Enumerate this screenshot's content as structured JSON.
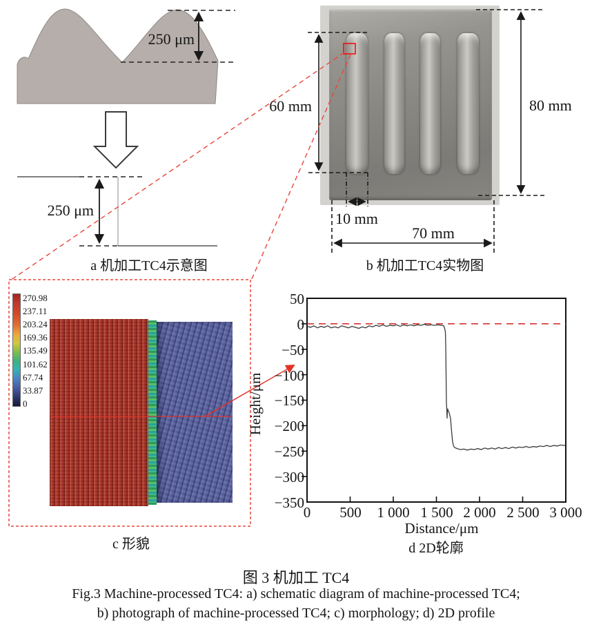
{
  "figure": {
    "caption_cn": "图 3  机加工 TC4",
    "caption_en_line1": "Fig.3 Machine-processed TC4: a) schematic diagram of machine-processed TC4;",
    "caption_en_line2": "b) photograph of machine-processed TC4; c) morphology; d) 2D profile"
  },
  "panel_a": {
    "caption": "a  机加工TC4示意图",
    "peak_height_label": "250 μm",
    "step_depth_label": "250 μm"
  },
  "panel_b": {
    "caption": "b  机加工TC4实物图",
    "groove_length_label": "60 mm",
    "plate_height_label": "80 mm",
    "groove_width_label": "10 mm",
    "plate_width_label": "70 mm"
  },
  "panel_c": {
    "caption": "c  形貌",
    "colorbar_labels": [
      "270.98",
      "237.11",
      "203.24",
      "169.36",
      "135.49",
      "101.62",
      "67.74",
      "33.87",
      "0"
    ]
  },
  "panel_d": {
    "caption": "d  2D轮廓",
    "xlabel": "Distance/μm",
    "ylabel": "Height/μm",
    "yticks": [
      "50",
      "0",
      "−50",
      "−100",
      "−150",
      "−200",
      "−250",
      "−300",
      "−350"
    ],
    "xticks": [
      "0",
      "500",
      "1 000",
      "1 500",
      "2 000",
      "2 500",
      "3 000"
    ]
  },
  "colors": {
    "annotation_red": "#e03a2c",
    "zero_line_red": "#cf2020",
    "profile_line": "#3a3a3a",
    "schematic_fill": "#b6aeab"
  },
  "chart_data": {
    "type": "line",
    "title": "",
    "xlabel": "Distance/μm",
    "ylabel": "Height/μm",
    "xlim": [
      0,
      3000
    ],
    "ylim": [
      -350,
      50
    ],
    "x_tick_step": 500,
    "y_tick_step": 50,
    "grid": false,
    "legend": "none",
    "series": [
      {
        "name": "machined surface 2D profile",
        "color": "#3a3a3a",
        "style": "solid",
        "points": [
          [
            0,
            -5
          ],
          [
            40,
            -7
          ],
          [
            80,
            -4
          ],
          [
            120,
            -8
          ],
          [
            160,
            -5
          ],
          [
            200,
            -7
          ],
          [
            240,
            -4
          ],
          [
            280,
            -8
          ],
          [
            320,
            -6
          ],
          [
            360,
            -8
          ],
          [
            400,
            -4
          ],
          [
            440,
            -6
          ],
          [
            480,
            -8
          ],
          [
            520,
            -5
          ],
          [
            560,
            -7
          ],
          [
            600,
            -9
          ],
          [
            640,
            -6
          ],
          [
            680,
            -8
          ],
          [
            720,
            -4
          ],
          [
            760,
            -6
          ],
          [
            800,
            -3
          ],
          [
            840,
            -5
          ],
          [
            880,
            -2
          ],
          [
            920,
            -5
          ],
          [
            960,
            -3
          ],
          [
            1000,
            -4
          ],
          [
            1040,
            -2
          ],
          [
            1080,
            -5
          ],
          [
            1120,
            -2
          ],
          [
            1160,
            -4
          ],
          [
            1200,
            -2
          ],
          [
            1240,
            -4
          ],
          [
            1280,
            -2
          ],
          [
            1320,
            -3
          ],
          [
            1360,
            -1
          ],
          [
            1400,
            -3
          ],
          [
            1440,
            -2
          ],
          [
            1480,
            -3
          ],
          [
            1520,
            -2
          ],
          [
            1560,
            -3
          ],
          [
            1585,
            -4
          ],
          [
            1600,
            -12
          ],
          [
            1605,
            -18
          ],
          [
            1609,
            -50
          ],
          [
            1613,
            -110
          ],
          [
            1616,
            -155
          ],
          [
            1620,
            -168
          ],
          [
            1624,
            -186
          ],
          [
            1627,
            -172
          ],
          [
            1632,
            -168
          ],
          [
            1640,
            -172
          ],
          [
            1648,
            -175
          ],
          [
            1656,
            -180
          ],
          [
            1664,
            -186
          ],
          [
            1674,
            -208
          ],
          [
            1686,
            -230
          ],
          [
            1698,
            -240
          ],
          [
            1712,
            -243
          ],
          [
            1740,
            -245
          ],
          [
            1780,
            -247
          ],
          [
            1820,
            -246
          ],
          [
            1860,
            -248
          ],
          [
            1900,
            -246
          ],
          [
            1940,
            -247
          ],
          [
            1980,
            -245
          ],
          [
            2020,
            -247
          ],
          [
            2060,
            -244
          ],
          [
            2100,
            -246
          ],
          [
            2140,
            -244
          ],
          [
            2180,
            -246
          ],
          [
            2220,
            -243
          ],
          [
            2260,
            -245
          ],
          [
            2300,
            -243
          ],
          [
            2340,
            -245
          ],
          [
            2380,
            -242
          ],
          [
            2420,
            -244
          ],
          [
            2460,
            -242
          ],
          [
            2500,
            -243
          ],
          [
            2540,
            -241
          ],
          [
            2580,
            -243
          ],
          [
            2620,
            -241
          ],
          [
            2660,
            -242
          ],
          [
            2700,
            -240
          ],
          [
            2740,
            -241
          ],
          [
            2780,
            -239
          ],
          [
            2820,
            -241
          ],
          [
            2860,
            -239
          ],
          [
            2900,
            -240
          ],
          [
            2940,
            -238
          ],
          [
            2980,
            -239
          ],
          [
            3000,
            -238
          ]
        ]
      },
      {
        "name": "zero reference line",
        "color": "#cf2020",
        "style": "dashed",
        "points": [
          [
            0,
            0
          ],
          [
            3000,
            0
          ]
        ]
      }
    ]
  }
}
